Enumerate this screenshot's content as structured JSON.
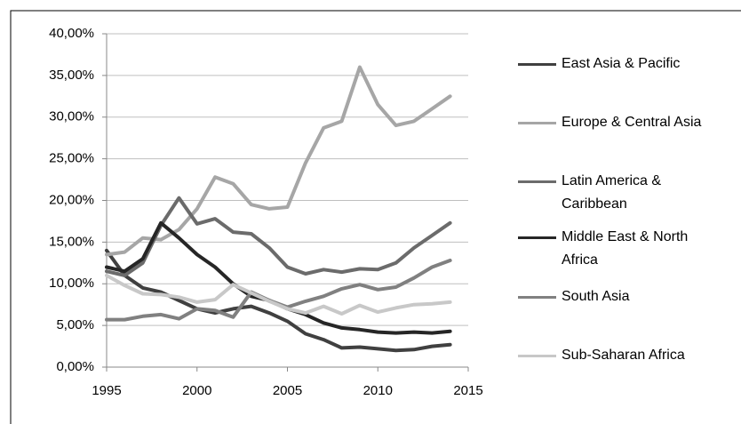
{
  "chart_data": {
    "type": "line",
    "x": [
      1995,
      1996,
      1997,
      1998,
      1999,
      2000,
      2001,
      2002,
      2003,
      2004,
      2005,
      2006,
      2007,
      2008,
      2009,
      2010,
      2011,
      2012,
      2013,
      2014
    ],
    "xlim": [
      1995,
      2015
    ],
    "xticks": [
      1995,
      2000,
      2005,
      2010,
      2015
    ],
    "ylim": [
      0,
      40
    ],
    "yticks": [
      {
        "value": 0,
        "label": "0,00%"
      },
      {
        "value": 5,
        "label": "5,00%"
      },
      {
        "value": 10,
        "label": "10,00%"
      },
      {
        "value": 15,
        "label": "15,00%"
      },
      {
        "value": 20,
        "label": "20,00%"
      },
      {
        "value": 25,
        "label": "25,00%"
      },
      {
        "value": 30,
        "label": "30,00%"
      },
      {
        "value": 35,
        "label": "35,00%"
      },
      {
        "value": 40,
        "label": "40,00%"
      }
    ],
    "grid": true,
    "series": [
      {
        "name": "East Asia & Pacific",
        "color": "#404040",
        "values": [
          14,
          11,
          9.5,
          9,
          8,
          7,
          6.5,
          7,
          7.3,
          6.5,
          5.5,
          4,
          3.3,
          2.3,
          2.4,
          2.2,
          2.0,
          2.1,
          2.5,
          2.7
        ]
      },
      {
        "name": "Europe & Central Asia",
        "color": "#a6a6a6",
        "values": [
          13.5,
          13.8,
          15.5,
          15.3,
          16.5,
          19,
          22.8,
          22,
          19.5,
          19,
          19.2,
          24.5,
          28.7,
          29.5,
          36,
          31.5,
          29,
          29.5,
          31,
          32.5
        ]
      },
      {
        "name": "Latin America & Caribbean",
        "color": "#6b6b6b",
        "values": [
          11.5,
          11,
          12.5,
          17,
          20.3,
          17.2,
          17.8,
          16.2,
          16,
          14.3,
          12,
          11.2,
          11.7,
          11.4,
          11.8,
          11.7,
          12.5,
          14.3,
          15.8,
          17.3
        ]
      },
      {
        "name": "Middle East & North Africa",
        "color": "#262626",
        "values": [
          12,
          11.5,
          13,
          17.3,
          15.5,
          13.5,
          12,
          10,
          8.5,
          8,
          7,
          6.3,
          5.3,
          4.7,
          4.5,
          4.2,
          4.1,
          4.2,
          4.1,
          4.3
        ]
      },
      {
        "name": "South Asia",
        "color": "#808080",
        "values": [
          5.7,
          5.7,
          6.1,
          6.3,
          5.8,
          7,
          6.8,
          6.0,
          9,
          8,
          7.2,
          7.9,
          8.5,
          9.4,
          9.9,
          9.3,
          9.6,
          10.7,
          12,
          12.8
        ]
      },
      {
        "name": "Sub-Saharan Africa",
        "color": "#c8c8c8",
        "values": [
          11,
          9.8,
          8.8,
          8.7,
          8.4,
          7.8,
          8.1,
          9.9,
          8.9,
          7.9,
          7.0,
          6.5,
          7.3,
          6.4,
          7.4,
          6.6,
          7.1,
          7.5,
          7.6,
          7.8
        ]
      }
    ],
    "legend": "right"
  }
}
